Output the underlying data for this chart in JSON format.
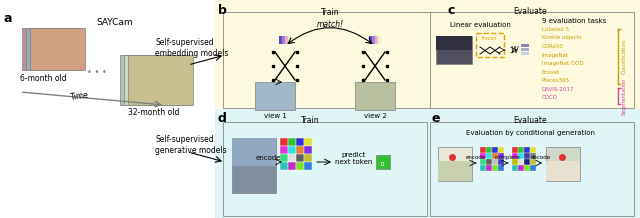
{
  "bg_top_color": "#fefae0",
  "bg_bottom_color": "#e0f5f5",
  "panel_a_label": "a",
  "panel_b_label": "b",
  "panel_c_label": "c",
  "panel_d_label": "d",
  "panel_e_label": "e",
  "saycam_text": "SAYCam",
  "age_start": "6-month old",
  "age_end": "32-month old",
  "time_text": "Time",
  "self_sup_embed": "Self-supervised\nembedding models",
  "self_sup_gen": "Self-supervised\ngenerative models",
  "train_b": "Train",
  "match_text": "match!",
  "view1_text": "view 1",
  "view2_text": "view 2",
  "evaluate_c": "Evaluate",
  "linear_eval": "Linear evaluation",
  "frozen_text": "frozen",
  "nine_tasks": "9 evaluation tasks",
  "tasks_classification": [
    "Labeled S",
    "Konkle objects",
    "CORe50",
    "ImageNet",
    "ImageNet OOD",
    "Ecoset",
    "Places365"
  ],
  "tasks_segmentation": [
    "DAVIS-2017",
    "COCO"
  ],
  "classification_label": "Classification",
  "segmentation_label": "Segmentation",
  "train_d": "Train",
  "evaluate_e": "Evaluate",
  "encode_text": "encode",
  "predict_next": "predict\nnext token",
  "eval_cond_gen": "Evaluation by conditional generation",
  "encode_e": "encode",
  "complete_e": "complete",
  "decode_e": "decode",
  "task_color_classification": "#c8a000",
  "task_color_segmentation": "#cc44aa",
  "bracket_color_classification": "#c8a000",
  "bracket_color_segmentation": "#cc44aa",
  "frozen_box_color": "#e8a000",
  "panel_label_size": 9,
  "small_text_size": 5.5,
  "medium_text_size": 6.5
}
